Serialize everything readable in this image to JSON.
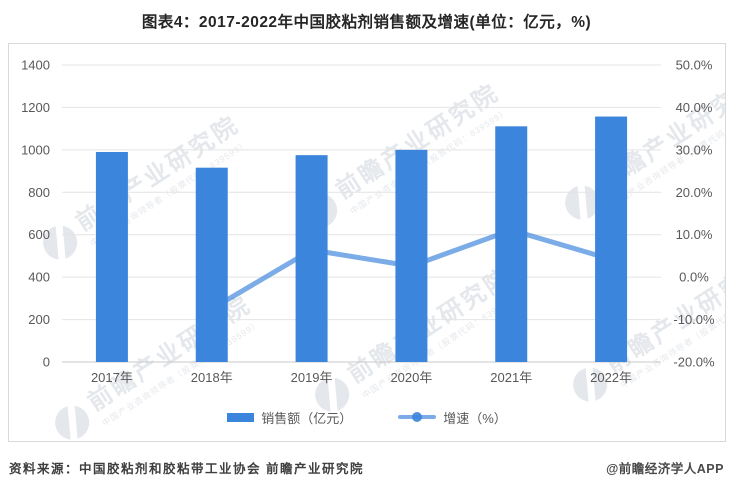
{
  "page": {
    "title": "图表4：2017-2022年中国胶粘剂销售额及增速(单位：亿元，%)",
    "source_left": "资料来源：中国胶粘剂和胶粘带工业协会 前瞻产业研究院",
    "source_right": "@前瞻经济学人APP"
  },
  "legend": {
    "sales_label": "销售额（亿元）",
    "growth_label": "增速（%）"
  },
  "watermark": {
    "big": "前瞻产业研究院",
    "small": "中国产业咨询领导者（股票代码：839599）"
  },
  "colors": {
    "bar": "#3C85DC",
    "line": "#3C85DC",
    "line_opacity": 0.68,
    "marker_opacity": 0.85,
    "grid": "#e4e4e4",
    "axis_line": "#c9c9c9",
    "tick_text": "#595959",
    "watermark": "#c4cbd3"
  },
  "chart_data": {
    "type": "bar+line",
    "title": "图表4：2017-2022年中国胶粘剂销售额及增速(单位：亿元，%)",
    "categories": [
      "2017年",
      "2018年",
      "2019年",
      "2020年",
      "2021年",
      "2022年"
    ],
    "series": [
      {
        "name": "销售额（亿元）",
        "type": "bar",
        "axis": "left",
        "values": [
          990,
          916,
          975,
          1000,
          1111,
          1157
        ]
      },
      {
        "name": "增速（%）",
        "type": "line",
        "axis": "right",
        "values": [
          null,
          -7.5,
          6.4,
          2.6,
          11.1,
          4.2
        ]
      }
    ],
    "left_axis": {
      "label": "",
      "min": 0,
      "max": 1400,
      "step": 200,
      "ticks": [
        "0",
        "200",
        "400",
        "600",
        "800",
        "1000",
        "1200",
        "1400"
      ]
    },
    "right_axis": {
      "label": "",
      "min": -20,
      "max": 50,
      "step": 10,
      "ticks": [
        "-20.0%",
        "-10.0%",
        "0.0%",
        "10.0%",
        "20.0%",
        "30.0%",
        "40.0%",
        "50.0%"
      ]
    },
    "grid": true,
    "legend_position": "bottom"
  }
}
